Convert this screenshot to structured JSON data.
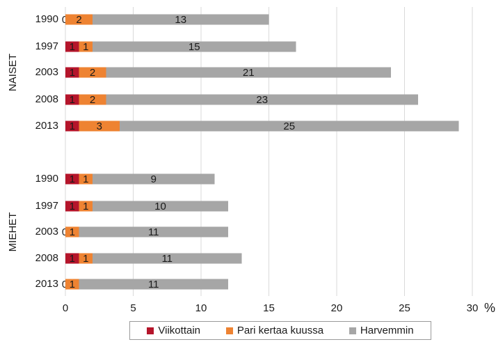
{
  "chart_data": {
    "type": "bar",
    "orientation": "horizontal",
    "stacked": true,
    "xlabel": "%",
    "xlim": [
      0,
      30
    ],
    "x_ticks": [
      "0",
      "5",
      "10",
      "15",
      "20",
      "25",
      "30"
    ],
    "grid": "vertical",
    "legend_position": "bottom",
    "groups": [
      {
        "name": "NAISET",
        "rows": [
          {
            "year": "1990",
            "values": [
              0,
              2,
              13
            ]
          },
          {
            "year": "1997",
            "values": [
              1,
              1,
              15
            ]
          },
          {
            "year": "2003",
            "values": [
              1,
              2,
              21
            ]
          },
          {
            "year": "2008",
            "values": [
              1,
              2,
              23
            ]
          },
          {
            "year": "2013",
            "values": [
              1,
              3,
              25
            ]
          }
        ]
      },
      {
        "name": "MIEHET",
        "rows": [
          {
            "year": "1990",
            "values": [
              1,
              1,
              9
            ]
          },
          {
            "year": "1997",
            "values": [
              1,
              1,
              10
            ]
          },
          {
            "year": "2003",
            "values": [
              0,
              1,
              11
            ]
          },
          {
            "year": "2008",
            "values": [
              1,
              1,
              11
            ]
          },
          {
            "year": "2013",
            "values": [
              0,
              1,
              11
            ]
          }
        ]
      }
    ],
    "series": [
      {
        "name": "Viikottain",
        "color": "#b5152b"
      },
      {
        "name": "Pari kertaa kuussa",
        "color": "#ee8332"
      },
      {
        "name": "Harvemmin",
        "color": "#a6a6a6"
      }
    ]
  }
}
